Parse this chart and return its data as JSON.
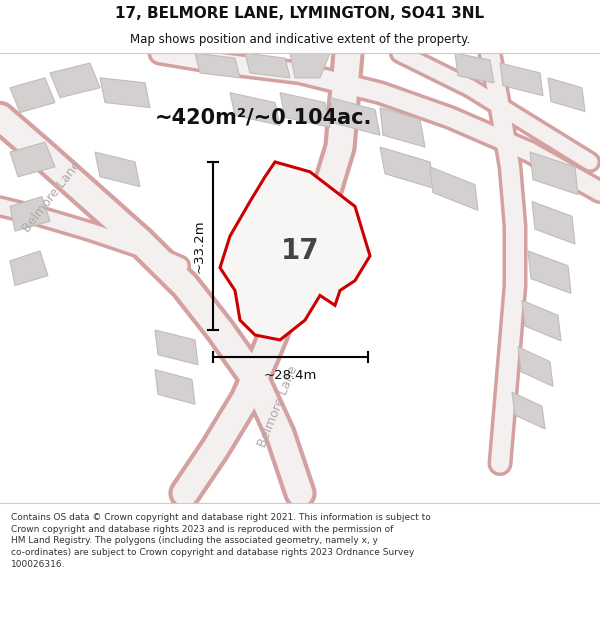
{
  "title": "17, BELMORE LANE, LYMINGTON, SO41 3NL",
  "subtitle": "Map shows position and indicative extent of the property.",
  "area_label": "~420m²/~0.104ac.",
  "plot_number": "17",
  "width_label": "~28.4m",
  "height_label": "~33.2m",
  "footer": "Contains OS data © Crown copyright and database right 2021. This information is subject to\nCrown copyright and database rights 2023 and is reproduced with the permission of\nHM Land Registry. The polygons (including the associated geometry, namely x, y\nco-ordinates) are subject to Crown copyright and database rights 2023 Ordnance Survey\n100026316.",
  "map_bg": "#ede8e8",
  "road_color": "#f5f0f0",
  "road_edge": "#d4a0a0",
  "building_fill": "#d4d0d0",
  "building_edge": "#c0bcbc",
  "plot_fill": "#f8f5f5",
  "plot_stroke": "#cc0000",
  "dim_color": "#111111",
  "road_label_color": "#b0a8a8",
  "title_color": "#111111",
  "footer_color": "#333333"
}
